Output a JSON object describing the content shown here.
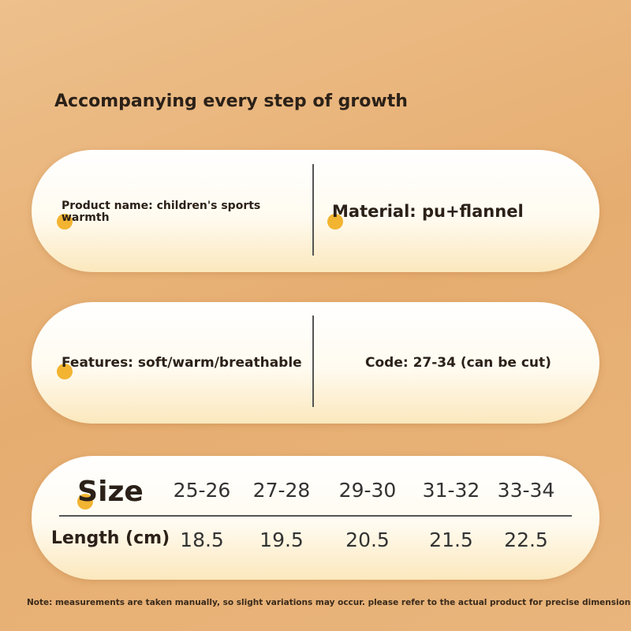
{
  "header": {
    "title": "Accompanying every step of growth"
  },
  "cards": [
    {
      "left": "Product name: children's sports warmth",
      "right": "Material: pu+flannel"
    },
    {
      "left": "Features: soft/warm/breathable",
      "right": "Code: 27-34 (can be cut)"
    }
  ],
  "table": {
    "rows": [
      [
        "Size",
        "25-26",
        "27-28",
        "29-30",
        "31-32",
        "33-34"
      ],
      [
        "Length (cm)",
        "18.5",
        "19.5",
        "20.5",
        "21.5",
        "22.5"
      ]
    ]
  },
  "note": "Note: measurements are taken manually, so slight variations may occur. please refer to the actual product for precise dimensions"
}
